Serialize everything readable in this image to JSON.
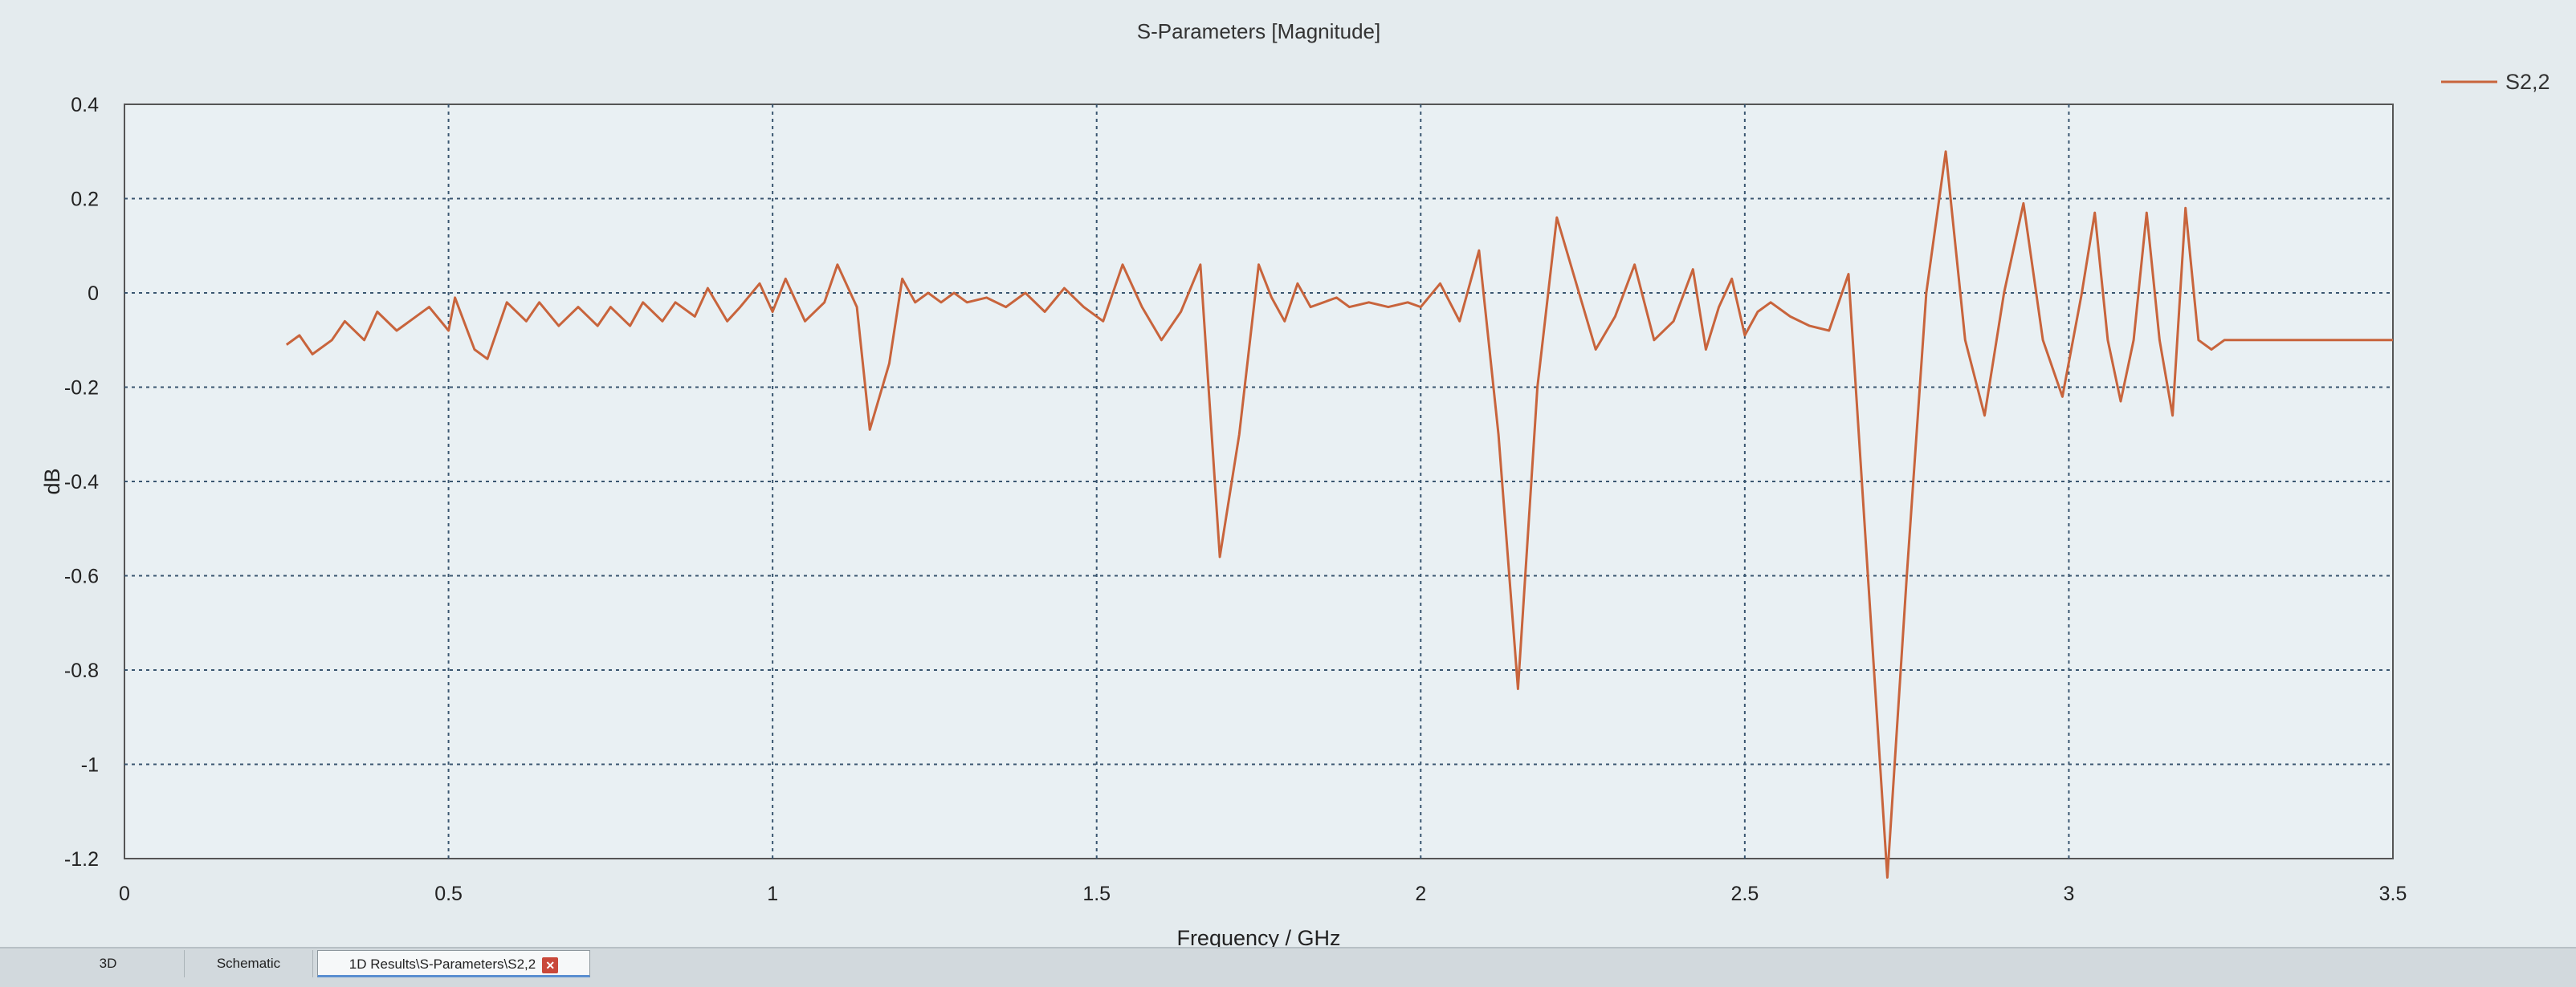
{
  "chart_data": {
    "type": "line",
    "title": "S-Parameters [Magnitude]",
    "xlabel": "Frequency / GHz",
    "ylabel": "dB",
    "xlim": [
      0,
      3.5
    ],
    "ylim": [
      -1.2,
      0.4
    ],
    "xticks": [
      "0",
      "0.5",
      "1",
      "1.5",
      "2",
      "2.5",
      "3",
      "3.5"
    ],
    "yticks": [
      "0.4",
      "0.2",
      "0",
      "-0.2",
      "-0.4",
      "-0.6",
      "-0.8",
      "-1",
      "-1.2"
    ],
    "grid": true,
    "legend_position": "top-right",
    "series": [
      {
        "name": "S2,2",
        "color": "#c8643c",
        "x": [
          0.25,
          0.27,
          0.29,
          0.32,
          0.34,
          0.37,
          0.39,
          0.42,
          0.44,
          0.47,
          0.5,
          0.51,
          0.54,
          0.56,
          0.59,
          0.62,
          0.64,
          0.67,
          0.7,
          0.73,
          0.75,
          0.78,
          0.8,
          0.83,
          0.85,
          0.88,
          0.9,
          0.93,
          0.95,
          0.98,
          1.0,
          1.02,
          1.05,
          1.08,
          1.1,
          1.13,
          1.15,
          1.18,
          1.2,
          1.22,
          1.24,
          1.26,
          1.28,
          1.3,
          1.33,
          1.36,
          1.39,
          1.42,
          1.45,
          1.48,
          1.51,
          1.54,
          1.57,
          1.6,
          1.63,
          1.66,
          1.69,
          1.72,
          1.75,
          1.77,
          1.79,
          1.81,
          1.83,
          1.85,
          1.87,
          1.89,
          1.92,
          1.95,
          1.98,
          2.0,
          2.03,
          2.06,
          2.09,
          2.12,
          2.15,
          2.18,
          2.21,
          2.24,
          2.27,
          2.3,
          2.33,
          2.36,
          2.39,
          2.42,
          2.44,
          2.46,
          2.48,
          2.5,
          2.52,
          2.54,
          2.57,
          2.6,
          2.63,
          2.66,
          2.69,
          2.72,
          2.75,
          2.78,
          2.81,
          2.84,
          2.87,
          2.9,
          2.93,
          2.96,
          2.99,
          3.02,
          3.04,
          3.06,
          3.08,
          3.1,
          3.12,
          3.14,
          3.16,
          3.18,
          3.2,
          3.22,
          3.24,
          3.26,
          3.28,
          3.3,
          3.32,
          3.34,
          3.36,
          3.38,
          3.4,
          3.42,
          3.44,
          3.46,
          3.48,
          3.5
        ],
        "y": [
          -0.11,
          -0.09,
          -0.13,
          -0.1,
          -0.06,
          -0.1,
          -0.04,
          -0.08,
          -0.06,
          -0.03,
          -0.08,
          -0.01,
          -0.12,
          -0.14,
          -0.02,
          -0.06,
          -0.02,
          -0.07,
          -0.03,
          -0.07,
          -0.03,
          -0.07,
          -0.02,
          -0.06,
          -0.02,
          -0.05,
          0.01,
          -0.06,
          -0.03,
          0.02,
          -0.04,
          0.03,
          -0.06,
          -0.02,
          0.06,
          -0.03,
          -0.29,
          -0.15,
          0.03,
          -0.02,
          0.0,
          -0.02,
          0.0,
          -0.02,
          -0.01,
          -0.03,
          0.0,
          -0.04,
          0.01,
          -0.03,
          -0.06,
          0.06,
          -0.03,
          -0.1,
          -0.04,
          0.06,
          -0.56,
          -0.3,
          0.06,
          -0.01,
          -0.06,
          0.02,
          -0.03,
          -0.02,
          -0.01,
          -0.03,
          -0.02,
          -0.03,
          -0.02,
          -0.03,
          0.02,
          -0.06,
          0.09,
          -0.3,
          -0.84,
          -0.2,
          0.16,
          0.02,
          -0.12,
          -0.05,
          0.06,
          -0.1,
          -0.06,
          0.05,
          -0.12,
          -0.03,
          0.03,
          -0.09,
          -0.04,
          -0.02,
          -0.05,
          -0.07,
          -0.08,
          0.04,
          -0.6,
          -1.24,
          -0.6,
          0.0,
          0.3,
          -0.1,
          -0.26,
          0.0,
          0.19,
          -0.1,
          -0.22,
          0.0,
          0.17,
          -0.1,
          -0.23,
          -0.1,
          0.17,
          -0.1,
          -0.26,
          0.18,
          -0.1,
          -0.12,
          -0.1,
          -0.1,
          -0.1,
          -0.1,
          -0.1,
          -0.1,
          -0.1,
          -0.1,
          -0.1,
          -0.1,
          -0.1,
          -0.1,
          -0.1,
          -0.1
        ]
      }
    ]
  },
  "tabs": [
    {
      "label": "3D"
    },
    {
      "label": "Schematic"
    },
    {
      "label": "1D Results\\S-Parameters\\S2,2"
    }
  ],
  "tab_close_glyph": "✕"
}
